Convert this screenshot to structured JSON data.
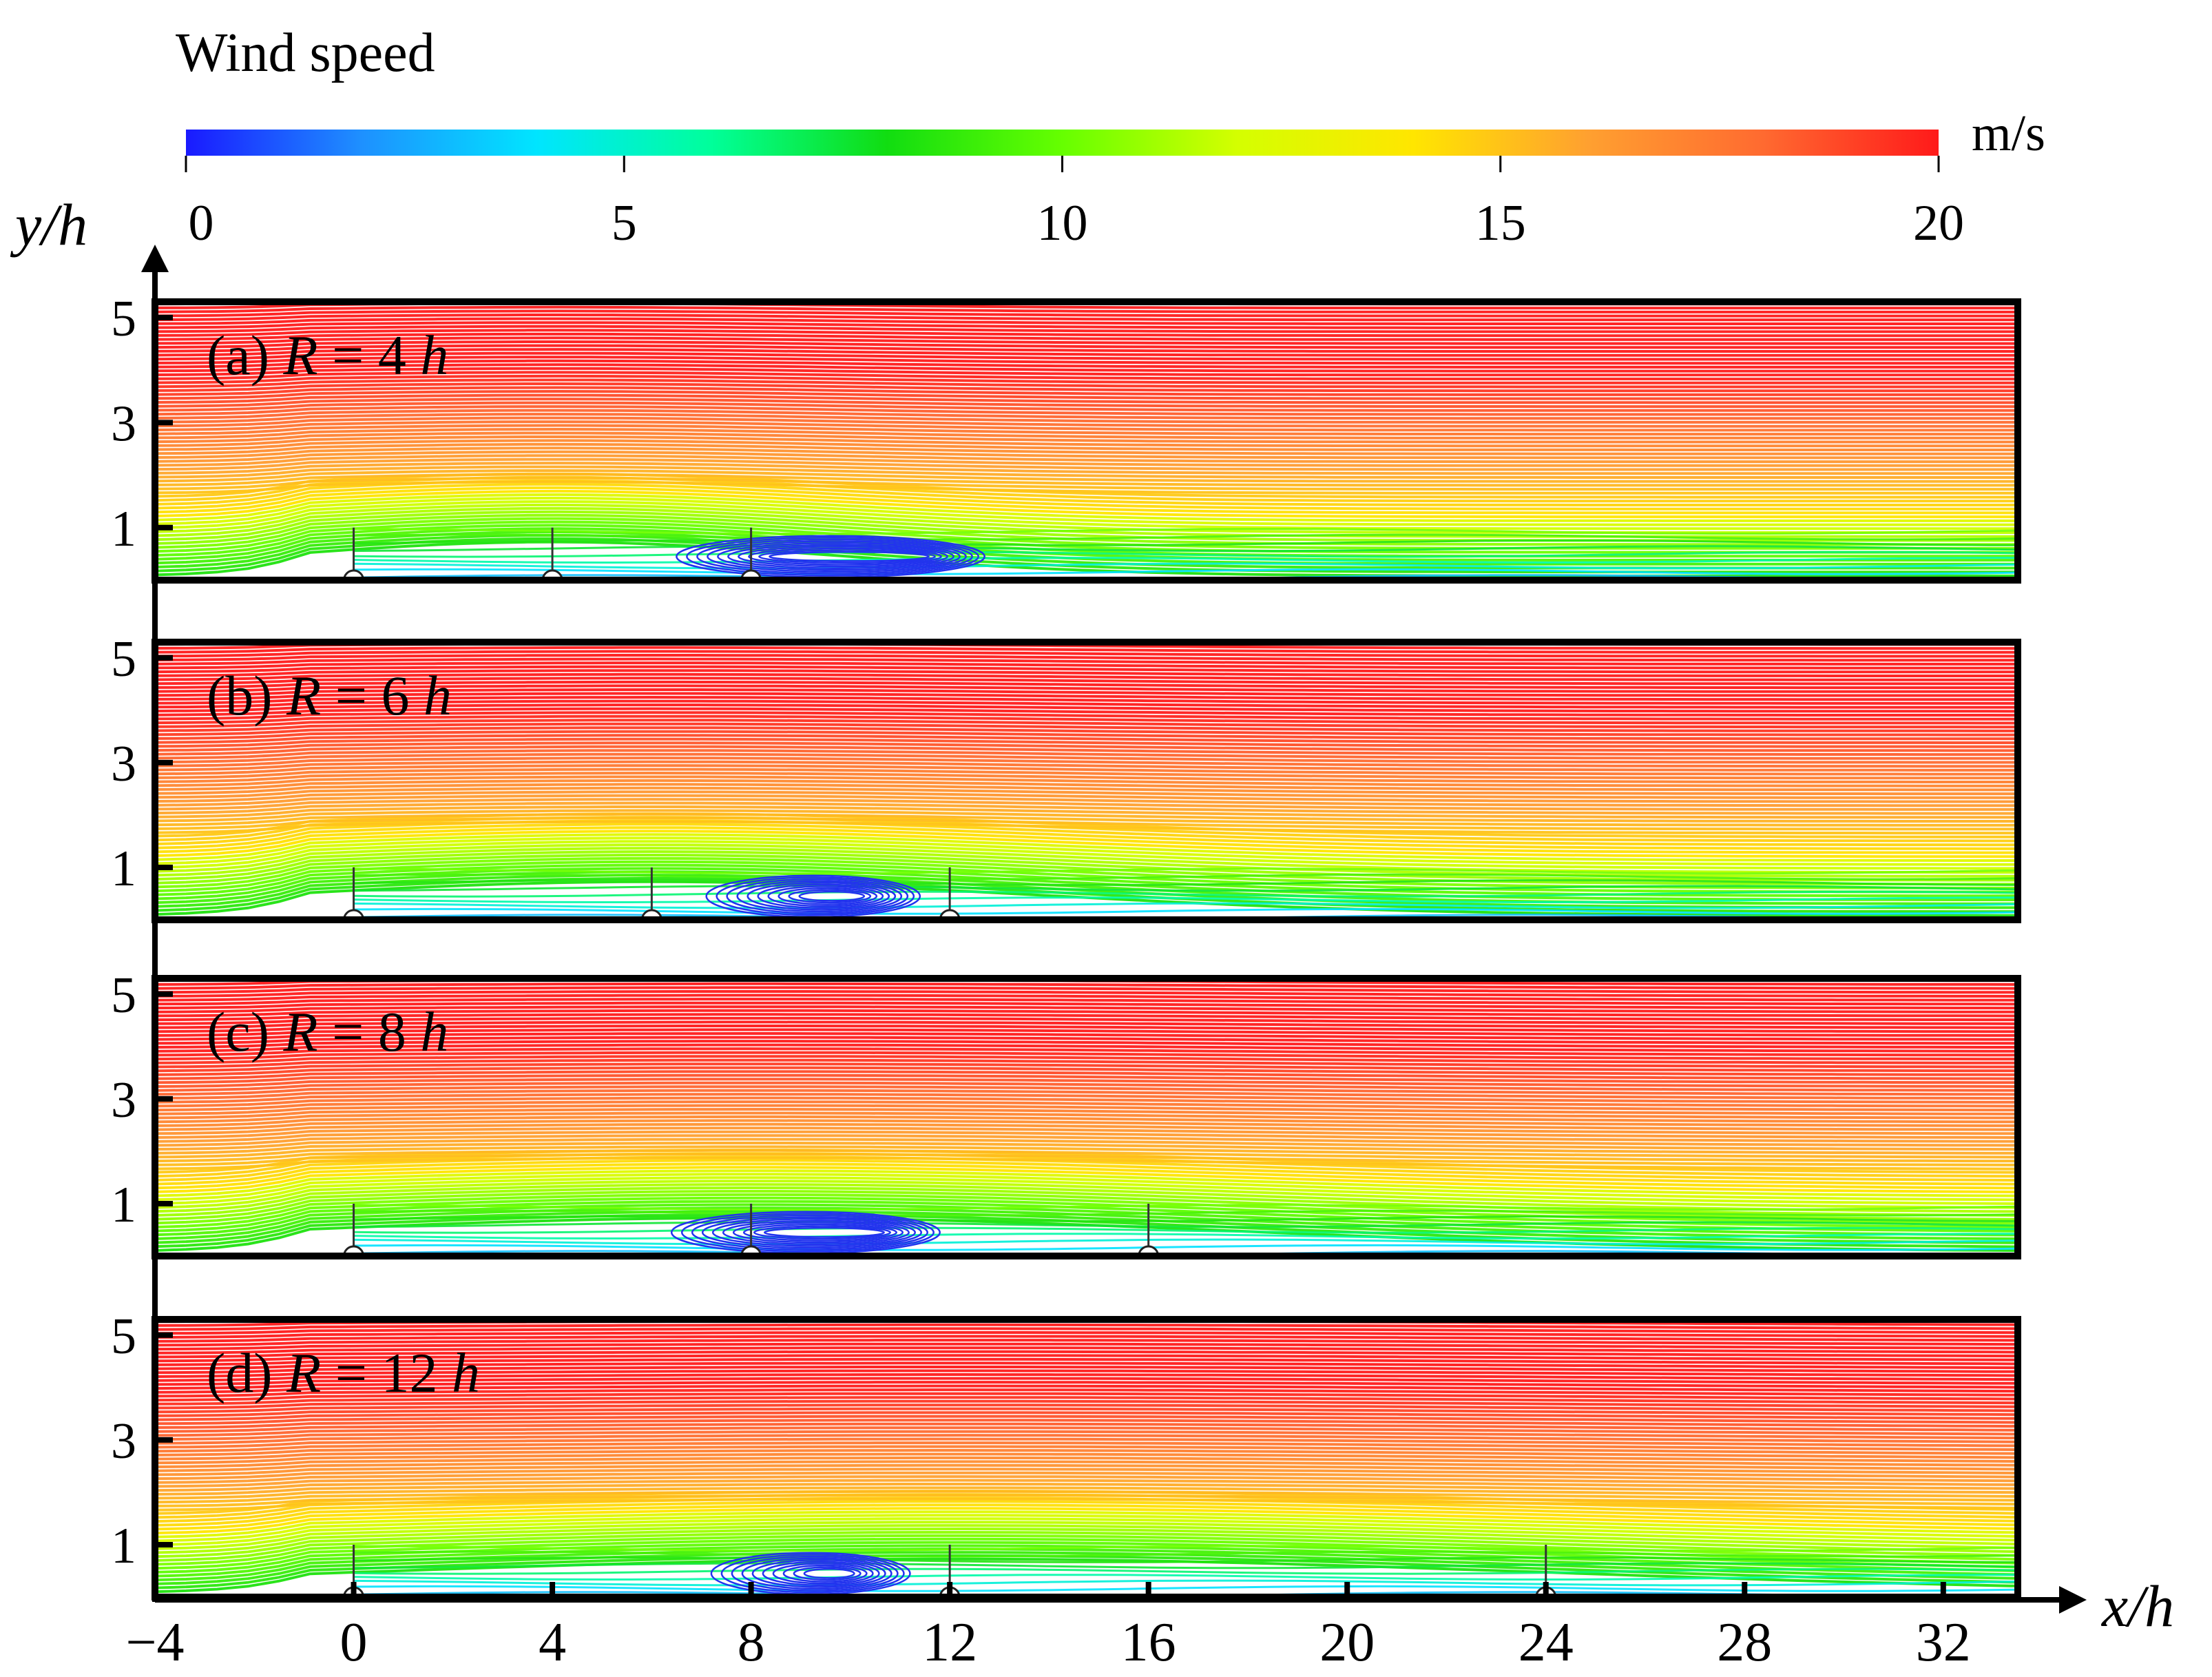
{
  "colorbar": {
    "title": "Wind speed",
    "unit": "m/s",
    "ticks": [
      0,
      5,
      10,
      15,
      20
    ],
    "stops": [
      "#1a1aff",
      "#1e90ff",
      "#00e5ff",
      "#00ff9a",
      "#11dd11",
      "#66ff00",
      "#d4ff00",
      "#ffe600",
      "#ffa030",
      "#ff6a30",
      "#ff1a1a"
    ]
  },
  "axes": {
    "x_label": "x/h",
    "y_label": "y/h",
    "x_ticks": [
      -4,
      0,
      4,
      8,
      12,
      16,
      20,
      24,
      28,
      32
    ],
    "y_ticks": [
      1,
      3,
      5
    ]
  },
  "panels": [
    {
      "prefix": "(a) ",
      "var": "R",
      "equals": " = ",
      "num": "4",
      "unit": "h",
      "turbine_x": [
        0,
        4,
        8
      ]
    },
    {
      "prefix": "(b) ",
      "var": "R",
      "equals": " = ",
      "num": "6",
      "unit": "h",
      "turbine_x": [
        0,
        6,
        12
      ]
    },
    {
      "prefix": "(c) ",
      "var": "R",
      "equals": " = ",
      "num": "8",
      "unit": "h",
      "turbine_x": [
        0,
        8,
        16
      ]
    },
    {
      "prefix": "(d) ",
      "var": "R",
      "equals": " = ",
      "num": "12",
      "unit": "h",
      "turbine_x": [
        0,
        12,
        24
      ]
    }
  ],
  "chart_data": [
    {
      "type": "heatmap",
      "variable": "Wind speed",
      "unit": "m/s",
      "zlim": [
        0,
        20
      ],
      "xlim": [
        -4,
        33.5
      ],
      "ylim": [
        0,
        5.3
      ],
      "turbine_x": [
        0,
        4,
        8
      ],
      "wake_vortex_x": [
        6.5,
        12.7
      ],
      "notes": "streamlines colored by wind speed"
    },
    {
      "type": "heatmap",
      "variable": "Wind speed",
      "unit": "m/s",
      "zlim": [
        0,
        20
      ],
      "xlim": [
        -4,
        33.5
      ],
      "ylim": [
        0,
        5.3
      ],
      "turbine_x": [
        0,
        6,
        12
      ],
      "wake_vortex_x": [
        7.1,
        11.4
      ]
    },
    {
      "type": "heatmap",
      "variable": "Wind speed",
      "unit": "m/s",
      "zlim": [
        0,
        20
      ],
      "xlim": [
        -4,
        33.5
      ],
      "ylim": [
        0,
        5.3
      ],
      "turbine_x": [
        0,
        8,
        16
      ],
      "wake_vortex_x": [
        6.4,
        11.8
      ]
    },
    {
      "type": "heatmap",
      "variable": "Wind speed",
      "unit": "m/s",
      "zlim": [
        0,
        20
      ],
      "xlim": [
        -4,
        33.5
      ],
      "ylim": [
        0,
        5.3
      ],
      "turbine_x": [
        0,
        12,
        24
      ],
      "wake_vortex_x": [
        7.2,
        11.2
      ]
    }
  ]
}
